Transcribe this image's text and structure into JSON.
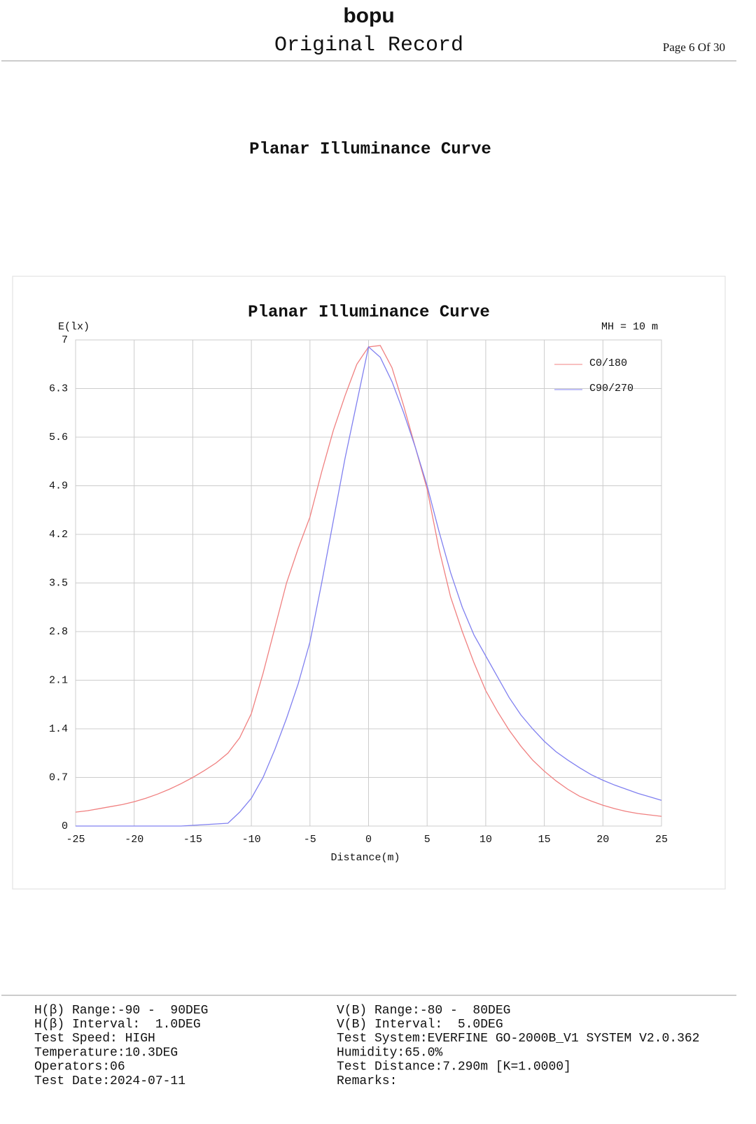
{
  "header": {
    "brand": "bopu",
    "title": "Original Record",
    "page": "Page 6 Of 30"
  },
  "section_title": "Planar Illuminance Curve",
  "chart_data": {
    "type": "line",
    "title": "Planar Illuminance Curve",
    "y_label": "E(lx)",
    "x_label": "Distance(m)",
    "annotation": "MH = 10 m",
    "x": [
      -25,
      -24,
      -23,
      -22,
      -21,
      -20,
      -19,
      -18,
      -17,
      -16,
      -15,
      -14,
      -13,
      -12,
      -11,
      -10,
      -9,
      -8,
      -7,
      -6,
      -5,
      -4,
      -3,
      -2,
      -1,
      0,
      1,
      2,
      3,
      4,
      5,
      6,
      7,
      8,
      9,
      10,
      11,
      12,
      13,
      14,
      15,
      16,
      17,
      18,
      19,
      20,
      21,
      22,
      23,
      24,
      25
    ],
    "series": [
      {
        "name": "C0/180",
        "color": "#f08080",
        "values": [
          0.2,
          0.22,
          0.25,
          0.28,
          0.31,
          0.35,
          0.4,
          0.46,
          0.53,
          0.61,
          0.7,
          0.8,
          0.91,
          1.05,
          1.27,
          1.62,
          2.2,
          2.85,
          3.5,
          4.0,
          4.45,
          5.1,
          5.7,
          6.2,
          6.65,
          6.9,
          6.92,
          6.6,
          6.05,
          5.45,
          4.85,
          4.0,
          3.3,
          2.8,
          2.35,
          1.95,
          1.65,
          1.38,
          1.15,
          0.95,
          0.79,
          0.65,
          0.53,
          0.43,
          0.36,
          0.3,
          0.25,
          0.21,
          0.18,
          0.16,
          0.14
        ]
      },
      {
        "name": "C90/270",
        "color": "#8080f0",
        "values": [
          0,
          0,
          0,
          0,
          0,
          0,
          0,
          0,
          0,
          0,
          0.01,
          0.02,
          0.03,
          0.04,
          0.2,
          0.4,
          0.7,
          1.1,
          1.55,
          2.05,
          2.65,
          3.5,
          4.4,
          5.3,
          6.1,
          6.9,
          6.75,
          6.4,
          5.95,
          5.45,
          4.9,
          4.25,
          3.65,
          3.15,
          2.75,
          2.45,
          2.15,
          1.85,
          1.6,
          1.4,
          1.22,
          1.07,
          0.95,
          0.84,
          0.74,
          0.66,
          0.59,
          0.53,
          0.47,
          0.42,
          0.37
        ]
      }
    ],
    "xlim": [
      -25,
      25
    ],
    "xticks": [
      -25,
      -20,
      -15,
      -10,
      -5,
      0,
      5,
      10,
      15,
      20,
      25
    ],
    "ylim": [
      0,
      7
    ],
    "yticks": [
      0,
      0.7,
      1.4,
      2.1,
      2.8,
      3.5,
      4.2,
      4.9,
      5.6,
      6.3,
      7
    ],
    "grid": true,
    "legend": "upper right"
  },
  "footer": {
    "left": [
      "H(β) Range:-90 -  90DEG",
      "H(β) Interval:  1.0DEG",
      "Test Speed: HIGH",
      "Temperature:10.3DEG",
      "Operators:06",
      "Test Date:2024-07-11"
    ],
    "right": [
      "V(B) Range:-80 -  80DEG",
      "V(B) Interval:  5.0DEG",
      "Test System:EVERFINE GO-2000B_V1 SYSTEM V2.0.362",
      "Humidity:65.0%",
      "Test Distance:7.290m [K=1.0000]",
      "Remarks:"
    ]
  }
}
